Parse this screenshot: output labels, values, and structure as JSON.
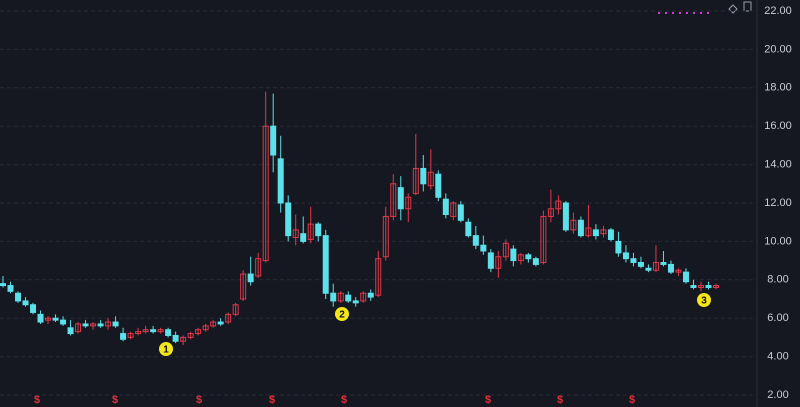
{
  "chart_data": {
    "type": "candlestick",
    "up_color": "#e0394a",
    "down_color": "#5ce0ea",
    "ylim": [
      2,
      22
    ],
    "yticks": [
      {
        "value": 2,
        "label": "2.00"
      },
      {
        "value": 4,
        "label": "4.00"
      },
      {
        "value": 6,
        "label": "6.00"
      },
      {
        "value": 8,
        "label": "8.00"
      },
      {
        "value": 10,
        "label": "10.00"
      },
      {
        "value": 12,
        "label": "12.00"
      },
      {
        "value": 14,
        "label": "14.00"
      },
      {
        "value": 16,
        "label": "16.00"
      },
      {
        "value": 18,
        "label": "18.00"
      },
      {
        "value": 20,
        "label": "20.00"
      },
      {
        "value": 22,
        "label": "22.00"
      }
    ],
    "grid": true,
    "ohlc": [
      [
        7.8,
        8.2,
        7.6,
        7.7
      ],
      [
        7.7,
        7.9,
        7.3,
        7.4
      ],
      [
        7.3,
        7.4,
        6.8,
        6.9
      ],
      [
        6.9,
        7.1,
        6.6,
        6.7
      ],
      [
        6.7,
        6.8,
        6.2,
        6.3
      ],
      [
        6.2,
        6.4,
        5.7,
        5.8
      ],
      [
        5.9,
        6.1,
        5.7,
        6.0
      ],
      [
        6.0,
        6.2,
        5.8,
        5.9
      ],
      [
        5.9,
        6.1,
        5.6,
        5.7
      ],
      [
        5.5,
        5.9,
        5.1,
        5.2
      ],
      [
        5.3,
        5.8,
        5.2,
        5.7
      ],
      [
        5.7,
        5.9,
        5.5,
        5.6
      ],
      [
        5.6,
        5.8,
        5.4,
        5.7
      ],
      [
        5.7,
        5.9,
        5.5,
        5.6
      ],
      [
        5.6,
        6.0,
        5.4,
        5.8
      ],
      [
        5.8,
        6.1,
        5.5,
        5.6
      ],
      [
        5.2,
        5.5,
        4.8,
        4.9
      ],
      [
        5.0,
        5.3,
        4.9,
        5.2
      ],
      [
        5.2,
        5.5,
        5.1,
        5.3
      ],
      [
        5.3,
        5.6,
        5.2,
        5.4
      ],
      [
        5.4,
        5.6,
        5.2,
        5.3
      ],
      [
        5.3,
        5.5,
        5.2,
        5.4
      ],
      [
        5.4,
        5.5,
        5.0,
        5.1
      ],
      [
        5.1,
        5.3,
        4.7,
        4.8
      ],
      [
        4.8,
        5.1,
        4.6,
        5.0
      ],
      [
        5.0,
        5.3,
        4.9,
        5.2
      ],
      [
        5.2,
        5.5,
        5.1,
        5.4
      ],
      [
        5.4,
        5.7,
        5.3,
        5.6
      ],
      [
        5.6,
        5.9,
        5.5,
        5.8
      ],
      [
        5.8,
        6.0,
        5.6,
        5.7
      ],
      [
        5.8,
        6.3,
        5.7,
        6.2
      ],
      [
        6.2,
        6.8,
        6.1,
        6.7
      ],
      [
        7.0,
        8.5,
        6.9,
        8.3
      ],
      [
        8.3,
        9.2,
        7.7,
        7.9
      ],
      [
        8.2,
        9.4,
        8.1,
        9.1
      ],
      [
        9.0,
        17.8,
        8.9,
        16.0
      ],
      [
        16.0,
        17.7,
        13.6,
        14.5
      ],
      [
        14.3,
        15.5,
        11.5,
        12.0
      ],
      [
        12.0,
        12.4,
        10.0,
        10.3
      ],
      [
        10.2,
        11.4,
        9.8,
        10.6
      ],
      [
        10.4,
        11.3,
        9.9,
        10.0
      ],
      [
        10.1,
        11.8,
        9.9,
        10.9
      ],
      [
        10.9,
        11.0,
        10.0,
        10.3
      ],
      [
        10.3,
        10.6,
        7.0,
        7.3
      ],
      [
        7.3,
        7.8,
        6.6,
        6.9
      ],
      [
        6.9,
        7.4,
        6.8,
        7.3
      ],
      [
        7.2,
        7.4,
        6.8,
        6.9
      ],
      [
        6.9,
        7.1,
        6.6,
        6.8
      ],
      [
        6.9,
        7.4,
        6.8,
        7.3
      ],
      [
        7.3,
        7.5,
        6.9,
        7.1
      ],
      [
        7.2,
        9.5,
        7.1,
        9.1
      ],
      [
        9.2,
        11.8,
        9.0,
        11.3
      ],
      [
        11.3,
        13.5,
        11.1,
        13.0
      ],
      [
        12.8,
        13.4,
        11.1,
        11.7
      ],
      [
        11.7,
        12.5,
        11.0,
        12.3
      ],
      [
        12.5,
        15.6,
        12.4,
        13.8
      ],
      [
        13.8,
        14.5,
        12.6,
        13.0
      ],
      [
        12.9,
        14.8,
        12.7,
        13.6
      ],
      [
        13.5,
        13.7,
        12.1,
        12.3
      ],
      [
        12.2,
        12.5,
        11.2,
        11.4
      ],
      [
        11.3,
        12.1,
        11.1,
        12.0
      ],
      [
        11.9,
        12.1,
        11.0,
        11.1
      ],
      [
        11.0,
        11.2,
        10.2,
        10.3
      ],
      [
        10.3,
        10.8,
        9.6,
        9.8
      ],
      [
        9.8,
        10.3,
        9.3,
        9.5
      ],
      [
        9.4,
        9.6,
        8.4,
        8.6
      ],
      [
        8.6,
        9.5,
        8.1,
        9.2
      ],
      [
        9.2,
        10.1,
        9.0,
        9.9
      ],
      [
        9.6,
        9.8,
        8.7,
        9.0
      ],
      [
        9.0,
        9.4,
        8.8,
        9.3
      ],
      [
        9.3,
        9.4,
        8.9,
        9.1
      ],
      [
        9.1,
        9.2,
        8.7,
        8.8
      ],
      [
        8.9,
        11.6,
        8.8,
        11.3
      ],
      [
        11.3,
        12.7,
        11.0,
        11.7
      ],
      [
        11.7,
        12.4,
        11.4,
        12.1
      ],
      [
        12.0,
        12.1,
        10.5,
        10.6
      ],
      [
        10.6,
        11.5,
        10.4,
        11.1
      ],
      [
        11.1,
        11.3,
        10.2,
        10.3
      ],
      [
        10.3,
        11.9,
        10.2,
        10.7
      ],
      [
        10.6,
        10.9,
        10.1,
        10.3
      ],
      [
        10.4,
        10.8,
        10.2,
        10.6
      ],
      [
        10.6,
        10.7,
        10.0,
        10.1
      ],
      [
        10.0,
        10.5,
        9.2,
        9.4
      ],
      [
        9.4,
        9.8,
        8.9,
        9.1
      ],
      [
        9.1,
        9.4,
        8.7,
        8.9
      ],
      [
        8.9,
        9.2,
        8.6,
        8.7
      ],
      [
        8.6,
        8.8,
        8.4,
        8.5
      ],
      [
        8.5,
        9.8,
        8.4,
        8.9
      ],
      [
        8.9,
        9.5,
        8.7,
        8.8
      ],
      [
        8.8,
        9.0,
        8.3,
        8.4
      ],
      [
        8.4,
        8.6,
        8.2,
        8.5
      ],
      [
        8.4,
        8.6,
        7.8,
        7.9
      ],
      [
        7.7,
        8.0,
        7.5,
        7.6
      ],
      [
        7.6,
        7.9,
        7.4,
        7.7
      ],
      [
        7.7,
        7.9,
        7.5,
        7.6
      ],
      [
        7.6,
        7.8,
        7.5,
        7.7
      ]
    ],
    "event_markers": [
      "$",
      "$",
      "$",
      "$",
      "$",
      "$",
      "$",
      "$"
    ],
    "annotations": [
      "1",
      "2",
      "3"
    ]
  }
}
